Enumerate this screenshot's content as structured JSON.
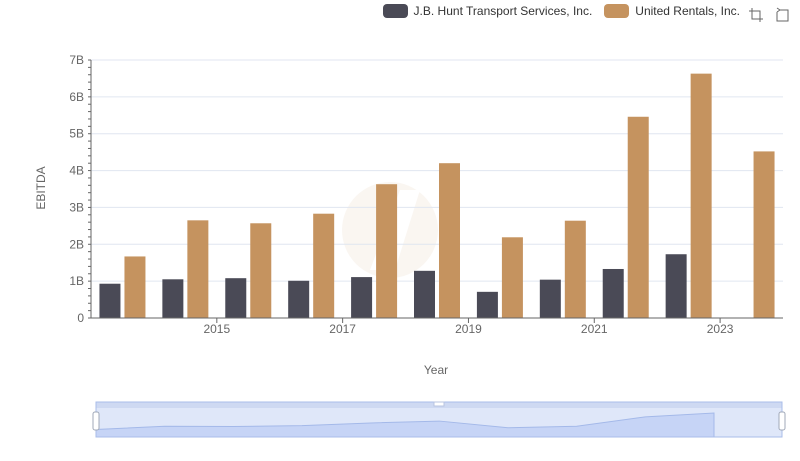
{
  "legend": {
    "series_a": "J.B. Hunt Transport Services, Inc.",
    "series_b": "United Rentals, Inc."
  },
  "toolbar": {
    "icons": [
      "zoom-area-icon",
      "restore-icon"
    ]
  },
  "colors": {
    "series_a": "#4a4a56",
    "series_b": "#c5935f",
    "grid": "#e0e6f0",
    "slider_fill": "#dbe4fb",
    "slider_border": "#c6d0e8"
  },
  "chart_data": {
    "type": "bar",
    "xlabel": "Year",
    "ylabel": "EBITDA",
    "ylim": [
      0,
      7
    ],
    "y_ticks": [
      "0",
      "1B",
      "2B",
      "3B",
      "4B",
      "5B",
      "6B",
      "7B"
    ],
    "categories": [
      "2014",
      "2015",
      "2016",
      "2017",
      "2018",
      "2019",
      "2020",
      "2021",
      "2022",
      "2023",
      "2024"
    ],
    "x_tick_labels": [
      "2015",
      "2017",
      "2019",
      "2021",
      "2023"
    ],
    "series": [
      {
        "name": "J.B. Hunt Transport Services, Inc.",
        "values": [
          0.93,
          1.05,
          1.08,
          1.01,
          1.11,
          1.28,
          0.71,
          1.04,
          1.33,
          1.73,
          null
        ]
      },
      {
        "name": "United Rentals, Inc.",
        "values": [
          1.67,
          2.65,
          2.57,
          2.83,
          3.63,
          4.2,
          2.19,
          2.64,
          5.46,
          6.63,
          4.52
        ]
      }
    ],
    "grid": true,
    "legend_position": "top-right",
    "data_zoom": true
  }
}
